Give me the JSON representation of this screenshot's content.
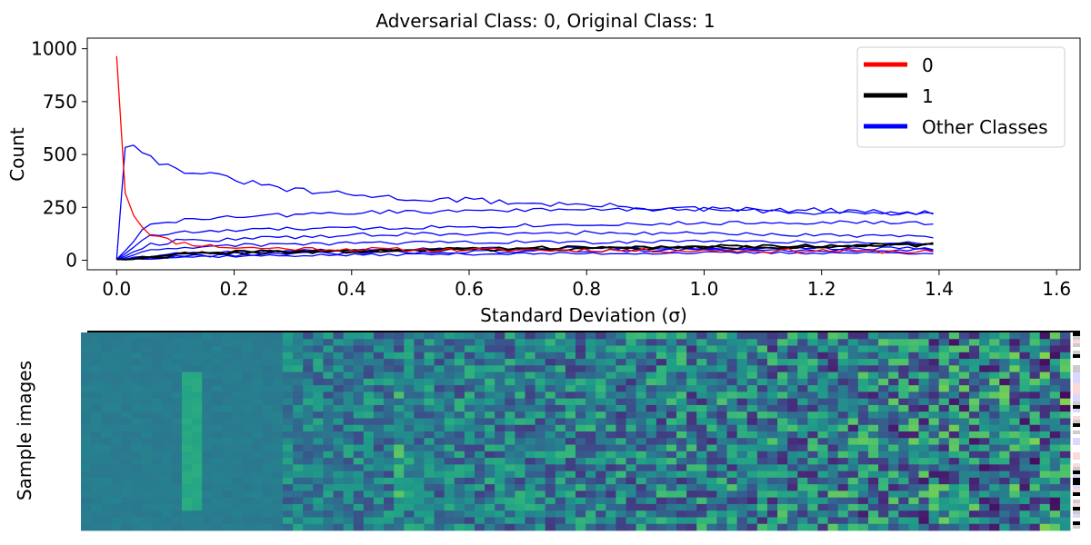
{
  "chart_data": {
    "type": "line",
    "title": "Adversarial Class: 0, Original Class: 1",
    "xlabel": "Standard Deviation (σ)",
    "ylabel": "Count",
    "xlim": [
      -0.05,
      1.64
    ],
    "ylim": [
      -45,
      1050
    ],
    "xticks": [
      0.0,
      0.2,
      0.4,
      0.6,
      0.8,
      1.0,
      1.2,
      1.4,
      1.6
    ],
    "xtick_labels": [
      "0.0",
      "0.2",
      "0.4",
      "0.6",
      "0.8",
      "1.0",
      "1.2",
      "1.4",
      "1.6"
    ],
    "yticks": [
      0,
      250,
      500,
      750,
      1000
    ],
    "ytick_labels": [
      "0",
      "250",
      "500",
      "750",
      "1000"
    ],
    "legend": {
      "position": "top-right",
      "entries": [
        {
          "label": "0",
          "color": "#ff0000"
        },
        {
          "label": "1",
          "color": "#000000"
        },
        {
          "label": "Other Classes",
          "color": "#0000ff"
        }
      ]
    },
    "x_range": [
      0.0,
      1.39
    ],
    "series": [
      {
        "name": "0",
        "color": "#ff0000",
        "anchors": [
          [
            0,
            965
          ],
          [
            0.015,
            300
          ],
          [
            0.035,
            180
          ],
          [
            0.06,
            120
          ],
          [
            0.1,
            85
          ],
          [
            0.15,
            70
          ],
          [
            0.2,
            60
          ],
          [
            0.3,
            55
          ],
          [
            0.5,
            50
          ],
          [
            0.8,
            48
          ],
          [
            1.0,
            45
          ],
          [
            1.2,
            45
          ],
          [
            1.39,
            40
          ]
        ],
        "noise": 10,
        "seed": 11
      },
      {
        "name": "1",
        "color": "#000000",
        "anchors": [
          [
            0,
            5
          ],
          [
            0.05,
            15
          ],
          [
            0.1,
            30
          ],
          [
            0.2,
            40
          ],
          [
            0.4,
            45
          ],
          [
            0.6,
            55
          ],
          [
            0.8,
            60
          ],
          [
            1.0,
            65
          ],
          [
            1.2,
            70
          ],
          [
            1.39,
            75
          ]
        ],
        "noise": 8,
        "seed": 21
      },
      {
        "name": "1",
        "color": "#000000",
        "anchors": [
          [
            0,
            5
          ],
          [
            0.05,
            12
          ],
          [
            0.1,
            25
          ],
          [
            0.2,
            35
          ],
          [
            0.4,
            40
          ],
          [
            0.6,
            50
          ],
          [
            0.8,
            55
          ],
          [
            1.0,
            60
          ],
          [
            1.2,
            65
          ],
          [
            1.39,
            70
          ]
        ],
        "noise": 8,
        "seed": 22
      },
      {
        "name": "Other Classes",
        "color": "#0000ff",
        "anchors": [
          [
            0,
            5
          ],
          [
            0.015,
            560
          ],
          [
            0.03,
            555
          ],
          [
            0.06,
            480
          ],
          [
            0.1,
            430
          ],
          [
            0.15,
            410
          ],
          [
            0.2,
            380
          ],
          [
            0.3,
            330
          ],
          [
            0.4,
            310
          ],
          [
            0.5,
            290
          ],
          [
            0.6,
            285
          ],
          [
            0.7,
            270
          ],
          [
            0.8,
            260
          ],
          [
            0.9,
            250
          ],
          [
            1.0,
            240
          ],
          [
            1.2,
            235
          ],
          [
            1.3,
            225
          ],
          [
            1.39,
            220
          ]
        ],
        "noise": 14,
        "seed": 31
      },
      {
        "name": "Other Classes",
        "color": "#0000ff",
        "anchors": [
          [
            0,
            5
          ],
          [
            0.05,
            160
          ],
          [
            0.1,
            185
          ],
          [
            0.2,
            205
          ],
          [
            0.3,
            215
          ],
          [
            0.4,
            225
          ],
          [
            0.6,
            235
          ],
          [
            0.8,
            240
          ],
          [
            1.0,
            240
          ],
          [
            1.2,
            225
          ],
          [
            1.39,
            225
          ]
        ],
        "noise": 10,
        "seed": 32
      },
      {
        "name": "Other Classes",
        "color": "#0000ff",
        "anchors": [
          [
            0,
            5
          ],
          [
            0.05,
            110
          ],
          [
            0.1,
            130
          ],
          [
            0.2,
            140
          ],
          [
            0.3,
            150
          ],
          [
            0.4,
            150
          ],
          [
            0.6,
            160
          ],
          [
            0.8,
            170
          ],
          [
            1.0,
            175
          ],
          [
            1.2,
            180
          ],
          [
            1.39,
            175
          ]
        ],
        "noise": 9,
        "seed": 33
      },
      {
        "name": "Other Classes",
        "color": "#0000ff",
        "anchors": [
          [
            0,
            5
          ],
          [
            0.05,
            70
          ],
          [
            0.1,
            90
          ],
          [
            0.2,
            100
          ],
          [
            0.3,
            110
          ],
          [
            0.4,
            120
          ],
          [
            0.6,
            125
          ],
          [
            0.8,
            130
          ],
          [
            1.0,
            125
          ],
          [
            1.2,
            120
          ],
          [
            1.39,
            110
          ]
        ],
        "noise": 9,
        "seed": 34
      },
      {
        "name": "Other Classes",
        "color": "#0000ff",
        "anchors": [
          [
            0,
            5
          ],
          [
            0.05,
            40
          ],
          [
            0.1,
            55
          ],
          [
            0.2,
            70
          ],
          [
            0.4,
            80
          ],
          [
            0.6,
            85
          ],
          [
            0.8,
            85
          ],
          [
            1.0,
            90
          ],
          [
            1.2,
            85
          ],
          [
            1.39,
            80
          ]
        ],
        "noise": 8,
        "seed": 35
      },
      {
        "name": "Other Classes",
        "color": "#0000ff",
        "anchors": [
          [
            0,
            5
          ],
          [
            0.05,
            20
          ],
          [
            0.1,
            30
          ],
          [
            0.2,
            40
          ],
          [
            0.4,
            50
          ],
          [
            0.6,
            55
          ],
          [
            0.8,
            60
          ],
          [
            1.0,
            60
          ],
          [
            1.2,
            58
          ],
          [
            1.39,
            55
          ]
        ],
        "noise": 7,
        "seed": 36
      },
      {
        "name": "Other Classes",
        "color": "#0000ff",
        "anchors": [
          [
            0,
            5
          ],
          [
            0.05,
            10
          ],
          [
            0.1,
            15
          ],
          [
            0.2,
            20
          ],
          [
            0.4,
            25
          ],
          [
            0.6,
            30
          ],
          [
            0.8,
            32
          ],
          [
            1.0,
            35
          ],
          [
            1.2,
            35
          ],
          [
            1.39,
            35
          ]
        ],
        "noise": 6,
        "seed": 37
      },
      {
        "name": "Other Classes",
        "color": "#0000ff",
        "anchors": [
          [
            0,
            5
          ],
          [
            0.05,
            10
          ],
          [
            0.1,
            18
          ],
          [
            0.2,
            25
          ],
          [
            0.4,
            35
          ],
          [
            0.6,
            40
          ],
          [
            0.8,
            45
          ],
          [
            1.0,
            50
          ],
          [
            1.2,
            45
          ],
          [
            1.39,
            50
          ]
        ],
        "noise": 7,
        "seed": 38
      }
    ]
  },
  "sample_panel": {
    "ylabel": "Sample images"
  }
}
